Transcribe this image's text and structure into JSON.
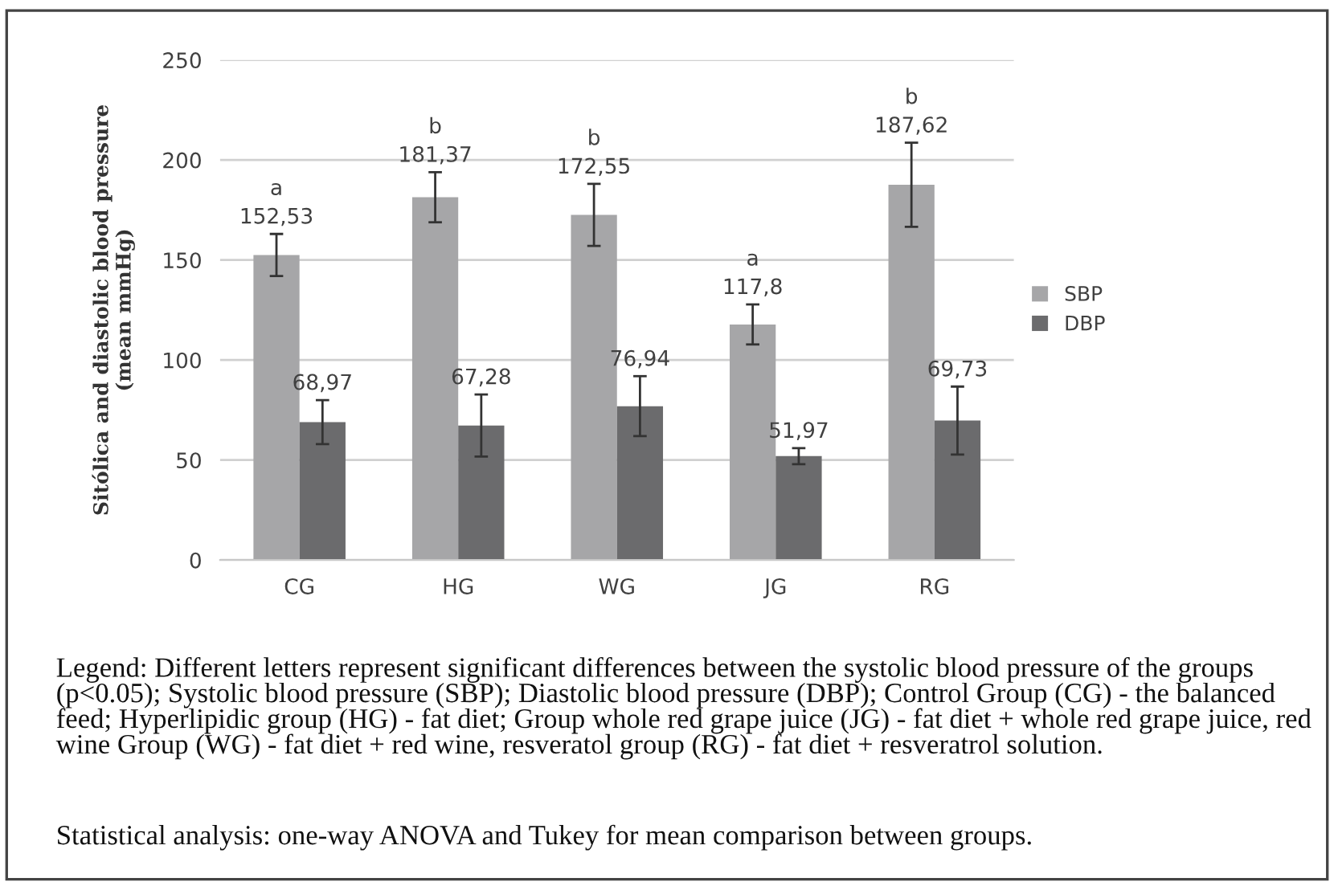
{
  "chart_data": {
    "type": "bar",
    "ylabel": "Sitólica and diastolic blood pressure\n(mean mmHg)",
    "categories": [
      "CG",
      "HG",
      "WG",
      "JG",
      "RG"
    ],
    "series": [
      {
        "name": "SBP",
        "color": "#a6a6a8",
        "values": [
          152.53,
          181.37,
          172.55,
          117.8,
          187.62
        ],
        "errors": [
          10.5,
          12.5,
          15.5,
          10,
          21
        ],
        "value_labels": [
          "a\n152,53",
          "b\n181,37",
          "b\n172,55",
          "a\n117,8",
          "b\n187,62"
        ]
      },
      {
        "name": "DBP",
        "color": "#6b6b6d",
        "values": [
          68.97,
          67.28,
          76.94,
          51.97,
          69.73
        ],
        "errors": [
          11,
          15.5,
          15,
          4,
          17
        ],
        "value_labels": [
          "68,97",
          "67,28",
          "76,94",
          "51,97",
          "69,73"
        ]
      }
    ],
    "ylim": [
      0,
      250
    ],
    "yticks": [
      0,
      50,
      100,
      150,
      200,
      250
    ],
    "grid": "y",
    "legend": "right",
    "annotations": [
      "Legend: Different letters represent significant differences between the systolic blood pressure of the groups (p<0.05); Systolic blood pressure (SBP); Diastolic blood pressure (DBP); Control Group (CG) - the balanced feed; Hyperlipidic group (HG) - fat diet; Group whole red grape juice (JG) - fat diet + whole red grape juice, red wine Group (WG) - fat diet + red wine, resveratol group (RG) - fat diet + resveratrol solution.",
      "Statistical analysis: one-way ANOVA and Tukey for mean comparison between groups."
    ]
  }
}
